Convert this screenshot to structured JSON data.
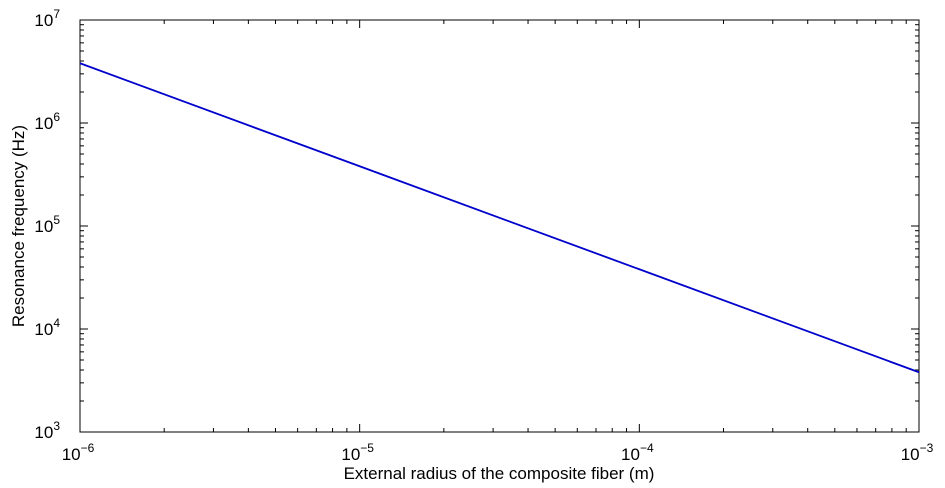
{
  "chart_data": {
    "type": "line",
    "title": "",
    "xlabel": "External radius of the composite fiber (m)",
    "ylabel": "Resonance frequency (Hz)",
    "x_scale": "log",
    "y_scale": "log",
    "xlim": [
      1e-06,
      0.001
    ],
    "ylim": [
      1000.0,
      10000000.0
    ],
    "grid": false,
    "legend": "none",
    "x_ticks": [
      {
        "base": "10",
        "exp": "−6",
        "value": 1e-06
      },
      {
        "base": "10",
        "exp": "−5",
        "value": 1e-05
      },
      {
        "base": "10",
        "exp": "−4",
        "value": 0.0001
      },
      {
        "base": "10",
        "exp": "−3",
        "value": 0.001
      }
    ],
    "y_ticks": [
      {
        "base": "10",
        "exp": "3",
        "value": 1000.0
      },
      {
        "base": "10",
        "exp": "4",
        "value": 10000.0
      },
      {
        "base": "10",
        "exp": "5",
        "value": 100000.0
      },
      {
        "base": "10",
        "exp": "6",
        "value": 1000000.0
      },
      {
        "base": "10",
        "exp": "7",
        "value": 10000000.0
      }
    ],
    "series": [
      {
        "color": "#0000cc",
        "x": [
          1e-06,
          1e-05,
          0.0001,
          0.001
        ],
        "y": [
          3800000,
          380000,
          38000,
          3800
        ]
      }
    ]
  }
}
